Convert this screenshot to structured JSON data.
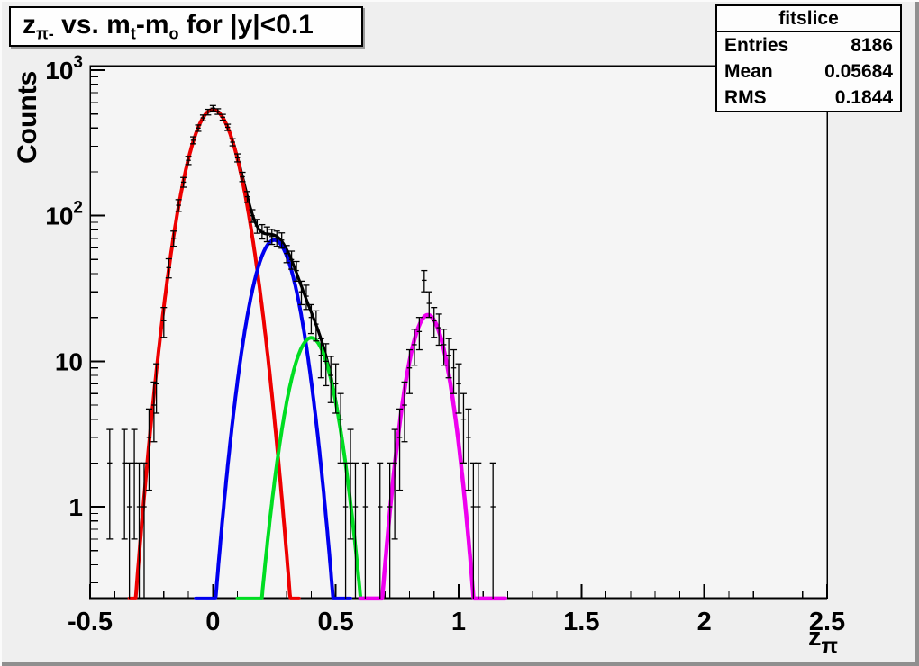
{
  "colors": {
    "canvas_bg": "#efefef",
    "frame_fill": "#f5f5f5",
    "axis": "#000000",
    "stats_bg": "#fdfdfd",
    "title_bg": "#fefefe"
  },
  "title": {
    "segments": [
      {
        "t": "z"
      },
      {
        "s": "π-"
      },
      {
        "t": " vs. m"
      },
      {
        "s": "t"
      },
      {
        "t": "-m"
      },
      {
        "s": "o"
      },
      {
        "t": " for |y|<0.1"
      }
    ]
  },
  "stats": {
    "title": "fitslice",
    "rows": [
      {
        "label": "Entries",
        "value": "8186"
      },
      {
        "label": "Mean",
        "value": "0.05684"
      },
      {
        "label": "RMS",
        "value": "0.1844"
      }
    ]
  },
  "x_title_segments": [
    {
      "t": "z"
    },
    {
      "s": "π"
    }
  ],
  "chart_data": {
    "type": "histogram-with-fits",
    "title": "z_pi- vs. m_t-m_o for |y|<0.1",
    "xlabel": "z_pi",
    "ylabel": "Counts",
    "y_scale": "log",
    "grid": false,
    "x_range": [
      -0.5,
      2.5
    ],
    "y_range": [
      0.234,
      1074
    ],
    "x_ticks": [
      -0.5,
      0,
      0.5,
      1,
      1.5,
      2,
      2.5
    ],
    "x_tick_labels": [
      "-0.5",
      "0",
      "0.5",
      "1",
      "1.5",
      "2",
      "2.5"
    ],
    "x_minor_tick_step": 0.1,
    "y_tick_labels": [
      {
        "value": 1,
        "text": "1"
      },
      {
        "value": 10,
        "text": "10"
      },
      {
        "value": 100,
        "base": "10",
        "exp": "2"
      },
      {
        "value": 1000,
        "base": "10",
        "exp": "3"
      }
    ],
    "fits": [
      {
        "name": "gauss-red",
        "color": "#ee0000",
        "width": 4,
        "amp": 535,
        "mean": 0.0,
        "sigma": 0.08,
        "range": [
          -0.34,
          0.35
        ]
      },
      {
        "name": "gauss-blue",
        "color": "#0000ee",
        "width": 4,
        "amp": 68,
        "mean": 0.25,
        "sigma": 0.071,
        "range": [
          -0.07,
          0.56
        ]
      },
      {
        "name": "gauss-green",
        "color": "#00dd22",
        "width": 4,
        "amp": 14.5,
        "mean": 0.4,
        "sigma": 0.07,
        "range": [
          0.1,
          0.63
        ]
      },
      {
        "name": "gauss-magenta",
        "color": "#ee00ee",
        "width": 4.5,
        "amp": 20.8,
        "mean": 0.875,
        "sigma": 0.062,
        "range": [
          0.6,
          1.19
        ]
      },
      {
        "name": "total-fit-black",
        "color": "#000000",
        "width": 3.2,
        "sum_of": [
          0,
          1,
          2
        ],
        "range": [
          -0.12,
          0.625
        ]
      }
    ],
    "points_format": [
      "x",
      "counts",
      "error"
    ],
    "points": [
      [
        -0.42,
        2,
        1.4
      ],
      [
        -0.36,
        2,
        1.4
      ],
      [
        -0.34,
        1,
        1
      ],
      [
        -0.32,
        2,
        1.4
      ],
      [
        -0.3,
        1,
        1
      ],
      [
        -0.28,
        1,
        1
      ],
      [
        -0.26,
        3,
        1.7
      ],
      [
        -0.24,
        5,
        2.2
      ],
      [
        -0.23,
        7,
        2.6
      ],
      [
        -0.2,
        19,
        4.4
      ],
      [
        -0.18,
        44,
        6.6
      ],
      [
        -0.16,
        70,
        8.4
      ],
      [
        -0.14,
        118,
        10.9
      ],
      [
        -0.12,
        170,
        13
      ],
      [
        -0.1,
        240,
        15.5
      ],
      [
        -0.08,
        330,
        18.2
      ],
      [
        -0.06,
        400,
        20
      ],
      [
        -0.04,
        470,
        21.7
      ],
      [
        -0.02,
        515,
        22.7
      ],
      [
        0.0,
        548,
        23.4
      ],
      [
        0.02,
        520,
        22.8
      ],
      [
        0.04,
        475,
        21.8
      ],
      [
        0.06,
        405,
        20.1
      ],
      [
        0.08,
        320,
        17.9
      ],
      [
        0.1,
        250,
        15.8
      ],
      [
        0.12,
        185,
        13.6
      ],
      [
        0.14,
        135,
        11.6
      ],
      [
        0.16,
        100,
        10
      ],
      [
        0.18,
        85,
        9.2
      ],
      [
        0.2,
        78,
        8.8
      ],
      [
        0.22,
        75,
        8.7
      ],
      [
        0.24,
        72,
        8.5
      ],
      [
        0.26,
        70,
        8.4
      ],
      [
        0.28,
        68,
        8.2
      ],
      [
        0.3,
        55,
        7.4
      ],
      [
        0.32,
        50,
        7.1
      ],
      [
        0.34,
        42,
        6.5
      ],
      [
        0.36,
        30,
        5.5
      ],
      [
        0.38,
        28,
        5.3
      ],
      [
        0.4,
        20,
        4.5
      ],
      [
        0.42,
        18,
        4.2
      ],
      [
        0.44,
        11,
        3.3
      ],
      [
        0.46,
        10,
        3.2
      ],
      [
        0.48,
        8,
        2.8
      ],
      [
        0.5,
        7,
        2.6
      ],
      [
        0.52,
        4,
        2
      ],
      [
        0.54,
        1,
        1
      ],
      [
        0.56,
        2,
        1.4
      ],
      [
        0.58,
        1,
        1
      ],
      [
        0.62,
        1,
        1
      ],
      [
        0.68,
        1,
        1
      ],
      [
        0.72,
        1,
        1
      ],
      [
        0.74,
        2,
        1.4
      ],
      [
        0.76,
        3,
        1.7
      ],
      [
        0.78,
        5,
        2.2
      ],
      [
        0.8,
        9,
        3
      ],
      [
        0.82,
        13,
        3.6
      ],
      [
        0.84,
        16,
        4
      ],
      [
        0.86,
        36,
        6
      ],
      [
        0.88,
        25,
        5
      ],
      [
        0.9,
        19,
        4.4
      ],
      [
        0.92,
        17,
        4.1
      ],
      [
        0.94,
        13,
        3.6
      ],
      [
        0.96,
        11,
        3.3
      ],
      [
        0.98,
        9,
        3
      ],
      [
        1.0,
        7,
        2.6
      ],
      [
        1.02,
        4,
        2
      ],
      [
        1.04,
        3,
        1.7
      ],
      [
        1.06,
        1,
        1
      ],
      [
        1.08,
        1,
        1
      ],
      [
        1.14,
        1,
        1
      ]
    ]
  }
}
